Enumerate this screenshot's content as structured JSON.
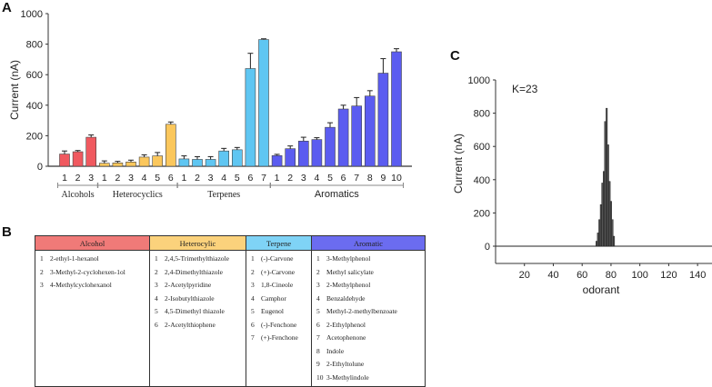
{
  "panels": {
    "a": "A",
    "b": "B",
    "c": "C"
  },
  "chart_data": [
    {
      "type": "bar",
      "panel": "A",
      "ylabel": "Current (nA)",
      "ylim": [
        0,
        1000
      ],
      "yticks": [
        0,
        200,
        400,
        600,
        800,
        1000
      ],
      "groups": [
        {
          "name": "Alcohols",
          "color": "#f0595f",
          "categories": [
            "1",
            "2",
            "3"
          ],
          "values": [
            80,
            95,
            190
          ],
          "errors": [
            20,
            8,
            15
          ]
        },
        {
          "name": "Heterocyclics",
          "color": "#fbc75c",
          "categories": [
            "1",
            "2",
            "3",
            "4",
            "5",
            "6"
          ],
          "values": [
            20,
            22,
            28,
            60,
            68,
            275
          ],
          "errors": [
            15,
            10,
            12,
            15,
            22,
            15
          ]
        },
        {
          "name": "Terpenes",
          "color": "#5fc6f2",
          "categories": [
            "1",
            "2",
            "3",
            "4",
            "5",
            "6",
            "7"
          ],
          "values": [
            48,
            45,
            45,
            100,
            108,
            640,
            830
          ],
          "errors": [
            20,
            18,
            18,
            17,
            15,
            100,
            5
          ]
        },
        {
          "name": "Aromatics",
          "color": "#5b5cf0",
          "categories": [
            "1",
            "2",
            "3",
            "4",
            "5",
            "6",
            "7",
            "8",
            "9",
            "10"
          ],
          "values": [
            70,
            115,
            165,
            175,
            255,
            375,
            395,
            460,
            610,
            750
          ],
          "errors": [
            8,
            18,
            25,
            12,
            30,
            25,
            55,
            35,
            95,
            20
          ]
        }
      ]
    },
    {
      "type": "bar",
      "panel": "C",
      "annotation": "K=23",
      "xlabel": "odorant",
      "ylabel": "Current (nA)",
      "xlim": [
        0,
        150
      ],
      "ylim": [
        -100,
        1000
      ],
      "xticks": [
        20,
        40,
        60,
        80,
        100,
        120,
        140
      ],
      "yticks": [
        0,
        200,
        400,
        600,
        800,
        1000
      ],
      "x": [
        70,
        71,
        72,
        73,
        74,
        75,
        76,
        77,
        78,
        79,
        80,
        81,
        82
      ],
      "values": [
        30,
        80,
        160,
        250,
        380,
        450,
        750,
        830,
        610,
        390,
        270,
        160,
        60
      ],
      "color": "#555555"
    }
  ],
  "table": {
    "columns": [
      {
        "header": "Alcohol",
        "color": "#f07a78",
        "items": [
          "2-ethyl-1-hexanol",
          "3-Methyl-2-cyclohexen-1ol",
          "4-Methylcyclohexanol"
        ]
      },
      {
        "header": "Heterocylic",
        "color": "#fbd27c",
        "items": [
          "2,4,5-Trimethylthiazole",
          "2,4-Dimethylthiazole",
          "2-Acetylpyridine",
          "2-Isobutylthiazole",
          "4,5-Dimethyl thiazole",
          "2-Acetylthiophene"
        ]
      },
      {
        "header": "Terpene",
        "color": "#7fd3f6",
        "items": [
          "(-)-Carvone",
          "(+)-Carvone",
          "1,8-Cineole",
          "Camphor",
          "Eugenol",
          "(-)-Fenchone",
          "(+)-Fenchone"
        ]
      },
      {
        "header": "Aromatic",
        "color": "#6b6cf0",
        "items": [
          "3-Methylphenol",
          "Methyl salicylate",
          "2-Methylphenol",
          "Benzaldehyde",
          "Methyl-2-methylbenzoate",
          "2-Ethylphenol",
          "Acetophenone",
          "Indole",
          "2-Ethyltolune",
          "3-Methylindole"
        ]
      }
    ]
  }
}
